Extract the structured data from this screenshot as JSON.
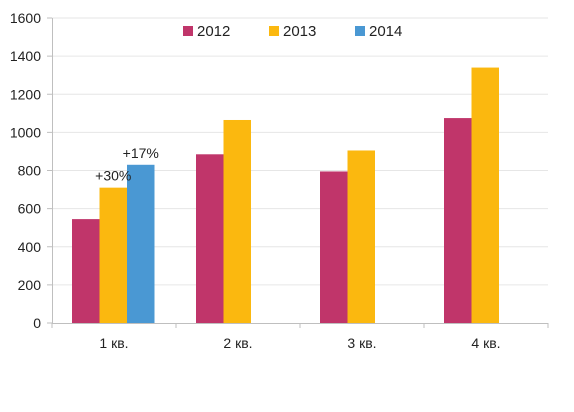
{
  "chart_data": {
    "type": "bar",
    "categories": [
      "1 кв.",
      "2 кв.",
      "3 кв.",
      "4 кв."
    ],
    "series": [
      {
        "name": "2012",
        "color": "#c0356a",
        "values": [
          545,
          885,
          795,
          1075
        ]
      },
      {
        "name": "2013",
        "color": "#fbb80f",
        "values": [
          710,
          1065,
          905,
          1340
        ]
      },
      {
        "name": "2014",
        "color": "#4a98d3",
        "values": [
          830,
          null,
          null,
          null
        ]
      }
    ],
    "ylim": [
      0,
      1600
    ],
    "yticks": [
      0,
      200,
      400,
      600,
      800,
      1000,
      1200,
      1400,
      1600
    ],
    "grid": true,
    "legend_position": "top-center",
    "annotations": [
      {
        "text": "+30%",
        "category": 0,
        "series": 1
      },
      {
        "text": "+17%",
        "category": 0,
        "series": 2
      }
    ]
  }
}
